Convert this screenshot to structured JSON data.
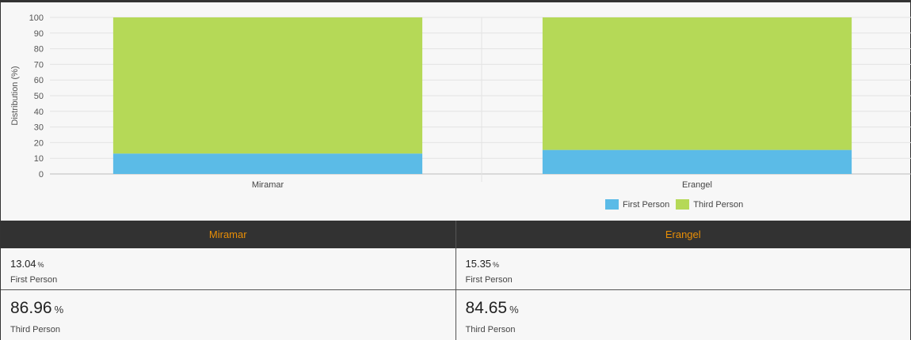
{
  "chart_data": {
    "type": "bar",
    "stacked": true,
    "categories": [
      "Miramar",
      "Erangel"
    ],
    "series": [
      {
        "name": "First Person",
        "values": [
          13.04,
          15.35
        ],
        "color": "#5bbbe7"
      },
      {
        "name": "Third Person",
        "values": [
          86.96,
          84.65
        ],
        "color": "#b5d957"
      }
    ],
    "ylabel": "Distribution (%)",
    "xlabel": "",
    "ylim": [
      0,
      100
    ],
    "yticks": [
      0,
      10,
      20,
      30,
      40,
      50,
      60,
      70,
      80,
      90,
      100
    ],
    "grid": true,
    "legend_position": "bottom-right"
  },
  "legend": {
    "first_label": "First Person",
    "third_label": "Third Person",
    "first_color": "#5bbbe7",
    "third_color": "#b5d957"
  },
  "table": {
    "header_color": "#e88e06",
    "columns": [
      {
        "name": "Miramar",
        "first_value": "13.04",
        "first_label": "First Person",
        "third_value": "86.96",
        "third_label": "Third Person"
      },
      {
        "name": "Erangel",
        "first_value": "15.35",
        "first_label": "First Person",
        "third_value": "84.65",
        "third_label": "Third Person"
      }
    ],
    "percent_sign": "%"
  }
}
